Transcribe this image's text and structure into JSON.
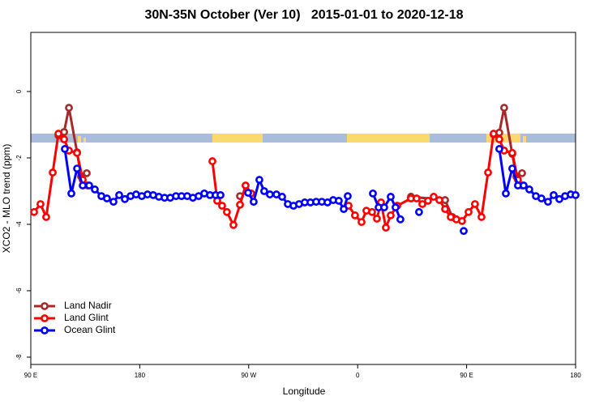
{
  "chart_data": {
    "type": "line",
    "title": "30N-35N October (Ver 10)   2015-01-01 to 2020-12-18",
    "xlabel": "Longitude",
    "ylabel": "XCO2 - MLO trend (ppm)",
    "xlim": [
      90,
      540
    ],
    "ylim": [
      -8.22,
      1.78
    ],
    "xticks": [
      {
        "value": 90,
        "label": "90 E"
      },
      {
        "value": 180,
        "label": "180"
      },
      {
        "value": 270,
        "label": "90 W"
      },
      {
        "value": 360,
        "label": "0"
      },
      {
        "value": 450,
        "label": "90 E"
      },
      {
        "value": 540,
        "label": "180"
      }
    ],
    "yticks": [
      0,
      -2,
      -4,
      -6,
      -8
    ],
    "legend": "bottom-left",
    "series": [
      {
        "name": "Land Nadir",
        "color": "#a52a2a",
        "x": [
          112.8,
          117.5,
          121.5,
          128.2,
          131.5,
          136.2,
          null,
          262.8,
          null,
          404.0,
          432.2,
          438.2,
          null,
          472.3,
          477.0,
          481.0,
          487.7,
          491.1,
          495.8
        ],
        "values": [
          -1.32,
          -1.22,
          -0.49,
          -1.83,
          -2.56,
          -2.46,
          null,
          -3.15,
          null,
          -3.17,
          -3.27,
          -3.78,
          null,
          -1.29,
          -1.24,
          -0.49,
          -1.88,
          -2.56,
          -2.46
        ]
      },
      {
        "name": "Land Glint",
        "color": "#ff0000",
        "x": [
          92.7,
          98.0,
          102.7,
          108.1,
          112.8,
          117.5,
          121.5,
          128.2,
          132.9,
          136.9,
          null,
          240.0,
          244.0,
          248.0,
          252.0,
          257.4,
          262.8,
          267.4,
          272.1,
          null,
          352.5,
          357.8,
          363.2,
          367.2,
          371.9,
          375.9,
          379.3,
          383.3,
          387.3,
          392.7,
          404.0,
          408.7,
          413.4,
          418.1,
          422.8,
          427.5,
          432.2,
          436.9,
          441.5,
          446.2,
          451.6,
          456.9,
          462.3,
          467.7,
          472.3,
          477.0,
          481.0,
          487.7,
          492.4,
          495.8
        ],
        "values": [
          -3.63,
          -3.39,
          -3.78,
          -2.44,
          -1.27,
          -1.44,
          -1.78,
          -1.85,
          -2.66,
          -2.83,
          null,
          -2.1,
          -3.29,
          -3.44,
          -3.63,
          -4.02,
          -3.41,
          -2.83,
          -3.07,
          null,
          -3.44,
          -3.73,
          -3.93,
          -3.59,
          -3.63,
          -3.83,
          -3.34,
          -4.1,
          -3.73,
          -3.44,
          -3.22,
          -3.22,
          -3.39,
          -3.29,
          -3.17,
          -3.27,
          -3.54,
          -3.78,
          -3.85,
          -3.9,
          -3.63,
          -3.39,
          -3.78,
          -2.44,
          -1.27,
          -1.44,
          -1.78,
          -1.85,
          -2.66,
          -2.83
        ]
      },
      {
        "name": "Ocean Glint",
        "color": "#0000ff",
        "x": [
          118.1,
          123.5,
          128.2,
          132.9,
          138.2,
          142.9,
          148.3,
          152.9,
          158.3,
          163.0,
          167.7,
          172.4,
          177.0,
          181.7,
          186.4,
          191.1,
          195.8,
          200.5,
          205.2,
          209.9,
          214.5,
          219.2,
          223.9,
          228.6,
          233.3,
          238.0,
          242.7,
          246.7,
          null,
          269.5,
          274.1,
          278.8,
          282.8,
          287.5,
          292.9,
          297.6,
          302.3,
          307.0,
          311.6,
          316.3,
          321.0,
          325.7,
          330.4,
          335.1,
          339.8,
          344.4,
          348.5,
          351.8,
          null,
          372.6,
          377.3,
          381.9,
          387.3,
          391.3,
          395.3,
          null,
          410.7,
          null,
          447.6,
          null,
          477.0,
          482.4,
          487.7,
          492.4,
          497.1,
          501.8,
          507.2,
          511.8,
          517.2,
          521.9,
          526.6,
          531.3,
          536.0,
          540.0
        ],
        "values": [
          -1.73,
          -3.07,
          -2.32,
          -2.83,
          -2.83,
          -2.95,
          -3.15,
          -3.22,
          -3.32,
          -3.12,
          -3.24,
          -3.15,
          -3.1,
          -3.15,
          -3.1,
          -3.12,
          -3.17,
          -3.2,
          -3.2,
          -3.15,
          -3.15,
          -3.15,
          -3.2,
          -3.15,
          -3.07,
          -3.12,
          -3.12,
          -3.12,
          null,
          -3.05,
          -3.32,
          -2.66,
          -3.0,
          -3.1,
          -3.1,
          -3.17,
          -3.39,
          -3.44,
          -3.39,
          -3.34,
          -3.34,
          -3.32,
          -3.32,
          -3.34,
          -3.27,
          -3.29,
          -3.54,
          -3.15,
          null,
          -3.07,
          -3.49,
          -3.49,
          -3.17,
          -3.49,
          -3.85,
          null,
          -3.63,
          null,
          -4.2,
          null,
          -1.73,
          -3.07,
          -2.32,
          -2.83,
          -2.83,
          -2.95,
          -3.15,
          -3.22,
          -3.32,
          -3.12,
          -3.24,
          -3.15,
          -3.1,
          -3.12
        ]
      }
    ]
  }
}
